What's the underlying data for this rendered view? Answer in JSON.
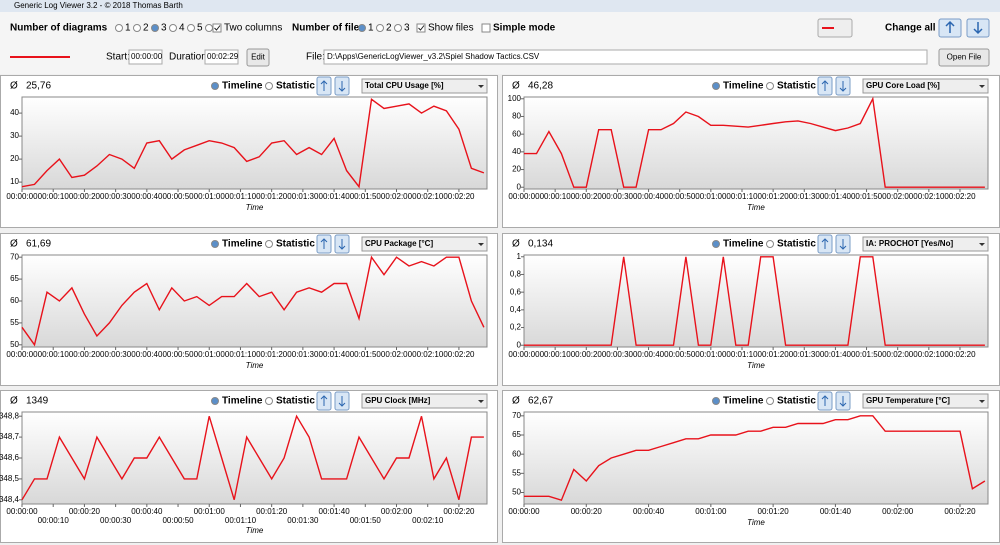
{
  "ui": {
    "window_title": "Generic Log Viewer 3.2 - © 2018 Thomas Barth",
    "diagrams_label": "Number of diagrams",
    "diagram_options": [
      "1",
      "2",
      "3",
      "4",
      "5",
      "6"
    ],
    "two_columns": "Two columns",
    "files_label": "Number of files",
    "file_options": [
      "1",
      "2",
      "3"
    ],
    "show_files": "Show files",
    "simple_mode": "Simple mode",
    "change_all": "Change all",
    "start_label": "Start:",
    "start": "00:00:00",
    "duration_label": "Duration:",
    "duration": "00:02:29",
    "edit": "Edit",
    "file_label": "File:",
    "file_path": "D:\\Apps\\GenericLogViewer_v3.2\\Spiel Shadow Tactics.CSV",
    "open_file": "Open File",
    "avg_symbol": "Ø",
    "view_modes": [
      "Timeline",
      "Statistic"
    ]
  },
  "chart_data": [
    {
      "type": "line",
      "metric": "Total CPU Usage [%]",
      "average_label": "25,76",
      "xlabel": "Time",
      "color": "#e8121b",
      "x": [
        0,
        4,
        8,
        12,
        16,
        20,
        24,
        28,
        32,
        36,
        40,
        44,
        48,
        52,
        56,
        60,
        64,
        68,
        72,
        76,
        80,
        84,
        88,
        92,
        96,
        100,
        104,
        108,
        112,
        116,
        120,
        124,
        128,
        132,
        136,
        140,
        144,
        148
      ],
      "values": [
        8,
        9,
        15,
        20,
        12,
        13,
        17,
        22,
        20,
        16,
        27,
        28,
        20,
        24,
        26,
        28,
        27,
        25,
        19,
        21,
        27,
        28,
        22,
        25,
        22,
        29,
        15,
        8,
        46,
        42,
        43,
        44,
        40,
        43,
        41,
        33,
        16,
        14
      ],
      "xlim": [
        0,
        149
      ],
      "ylim": [
        7,
        47
      ],
      "yticks": [
        10,
        20,
        30,
        40
      ],
      "xticks": [
        {
          "value": 0,
          "label": "00:00:00"
        },
        {
          "value": 10,
          "label": "00:00:10"
        },
        {
          "value": 20,
          "label": "00:00:20"
        },
        {
          "value": 30,
          "label": "00:00:30"
        },
        {
          "value": 40,
          "label": "00:00:40"
        },
        {
          "value": 50,
          "label": "00:00:50"
        },
        {
          "value": 60,
          "label": "00:01:00"
        },
        {
          "value": 70,
          "label": "00:01:10"
        },
        {
          "value": 80,
          "label": "00:01:20"
        },
        {
          "value": 90,
          "label": "00:01:30"
        },
        {
          "value": 100,
          "label": "00:01:40"
        },
        {
          "value": 110,
          "label": "00:01:50"
        },
        {
          "value": 120,
          "label": "00:02:00"
        },
        {
          "value": 130,
          "label": "00:02:10"
        },
        {
          "value": 140,
          "label": "00:02:20"
        }
      ]
    },
    {
      "type": "line",
      "metric": "GPU Core Load [%]",
      "average_label": "46,28",
      "xlabel": "Time",
      "color": "#e8121b",
      "x": [
        0,
        4,
        8,
        12,
        16,
        20,
        24,
        28,
        32,
        36,
        40,
        44,
        48,
        52,
        56,
        60,
        64,
        68,
        72,
        76,
        80,
        84,
        88,
        92,
        96,
        100,
        104,
        108,
        112,
        116,
        120,
        124,
        128,
        132,
        136,
        140,
        144,
        148
      ],
      "values": [
        38,
        38,
        63,
        38,
        0,
        0,
        65,
        65,
        0,
        0,
        65,
        65,
        72,
        85,
        80,
        70,
        70,
        69,
        68,
        70,
        72,
        74,
        75,
        72,
        68,
        64,
        67,
        72,
        100,
        0,
        0,
        0,
        0,
        0,
        0,
        0,
        0,
        0
      ],
      "xlim": [
        0,
        149
      ],
      "ylim": [
        -2,
        102
      ],
      "yticks": [
        0,
        20,
        40,
        60,
        80,
        100
      ],
      "xticks": [
        {
          "value": 0,
          "label": "00:00:00"
        },
        {
          "value": 10,
          "label": "00:00:10"
        },
        {
          "value": 20,
          "label": "00:00:20"
        },
        {
          "value": 30,
          "label": "00:00:30"
        },
        {
          "value": 40,
          "label": "00:00:40"
        },
        {
          "value": 50,
          "label": "00:00:50"
        },
        {
          "value": 60,
          "label": "00:01:00"
        },
        {
          "value": 70,
          "label": "00:01:10"
        },
        {
          "value": 80,
          "label": "00:01:20"
        },
        {
          "value": 90,
          "label": "00:01:30"
        },
        {
          "value": 100,
          "label": "00:01:40"
        },
        {
          "value": 110,
          "label": "00:01:50"
        },
        {
          "value": 120,
          "label": "00:02:00"
        },
        {
          "value": 130,
          "label": "00:02:10"
        },
        {
          "value": 140,
          "label": "00:02:20"
        }
      ]
    },
    {
      "type": "line",
      "metric": "CPU Package [°C]",
      "average_label": "61,69",
      "xlabel": "Time",
      "color": "#e8121b",
      "x": [
        0,
        4,
        8,
        12,
        16,
        20,
        24,
        28,
        32,
        36,
        40,
        44,
        48,
        52,
        56,
        60,
        64,
        68,
        72,
        76,
        80,
        84,
        88,
        92,
        96,
        100,
        104,
        108,
        112,
        116,
        120,
        124,
        128,
        132,
        136,
        140,
        144,
        148
      ],
      "values": [
        54,
        50,
        62,
        60,
        63,
        57,
        52,
        55,
        59,
        62,
        64,
        58,
        63,
        60,
        61,
        59,
        61,
        61,
        64,
        61,
        62,
        58,
        62,
        63,
        62,
        64,
        64,
        56,
        70,
        66,
        70,
        68,
        69,
        68,
        70,
        70,
        60,
        54
      ],
      "xlim": [
        0,
        149
      ],
      "ylim": [
        49.5,
        70.5
      ],
      "yticks": [
        50,
        55,
        60,
        65,
        70
      ],
      "xticks": [
        {
          "value": 0,
          "label": "00:00:00"
        },
        {
          "value": 10,
          "label": "00:00:10"
        },
        {
          "value": 20,
          "label": "00:00:20"
        },
        {
          "value": 30,
          "label": "00:00:30"
        },
        {
          "value": 40,
          "label": "00:00:40"
        },
        {
          "value": 50,
          "label": "00:00:50"
        },
        {
          "value": 60,
          "label": "00:01:00"
        },
        {
          "value": 70,
          "label": "00:01:10"
        },
        {
          "value": 80,
          "label": "00:01:20"
        },
        {
          "value": 90,
          "label": "00:01:30"
        },
        {
          "value": 100,
          "label": "00:01:40"
        },
        {
          "value": 110,
          "label": "00:01:50"
        },
        {
          "value": 120,
          "label": "00:02:00"
        },
        {
          "value": 130,
          "label": "00:02:10"
        },
        {
          "value": 140,
          "label": "00:02:20"
        }
      ]
    },
    {
      "type": "line",
      "metric": "IA: PROCHOT [Yes/No]",
      "average_label": "0,134",
      "xlabel": "Time",
      "color": "#e8121b",
      "x": [
        0,
        4,
        8,
        12,
        16,
        20,
        24,
        28,
        32,
        36,
        40,
        44,
        48,
        52,
        56,
        60,
        64,
        68,
        72,
        76,
        80,
        84,
        88,
        92,
        96,
        100,
        104,
        108,
        112,
        116,
        120,
        124,
        128,
        132,
        136,
        140,
        144,
        148
      ],
      "values": [
        0,
        0,
        0,
        0,
        0,
        0,
        0,
        0,
        1,
        0,
        0,
        0,
        0,
        1,
        0,
        0,
        1,
        0,
        0,
        1,
        1,
        0,
        0,
        0,
        0,
        0,
        0,
        1,
        1,
        0,
        0,
        0,
        0,
        0,
        0,
        0,
        0,
        0
      ],
      "xlim": [
        0,
        149
      ],
      "ylim": [
        -0.02,
        1.02
      ],
      "yticks": [
        0,
        {
          "value": 0.2,
          "label": "0,2"
        },
        {
          "value": 0.4,
          "label": "0,4"
        },
        {
          "value": 0.6,
          "label": "0,6"
        },
        {
          "value": 0.8,
          "label": "0,8"
        },
        1
      ],
      "xticks": [
        {
          "value": 0,
          "label": "00:00:00"
        },
        {
          "value": 10,
          "label": "00:00:10"
        },
        {
          "value": 20,
          "label": "00:00:20"
        },
        {
          "value": 30,
          "label": "00:00:30"
        },
        {
          "value": 40,
          "label": "00:00:40"
        },
        {
          "value": 50,
          "label": "00:00:50"
        },
        {
          "value": 60,
          "label": "00:01:00"
        },
        {
          "value": 70,
          "label": "00:01:10"
        },
        {
          "value": 80,
          "label": "00:01:20"
        },
        {
          "value": 90,
          "label": "00:01:30"
        },
        {
          "value": 100,
          "label": "00:01:40"
        },
        {
          "value": 110,
          "label": "00:01:50"
        },
        {
          "value": 120,
          "label": "00:02:00"
        },
        {
          "value": 130,
          "label": "00:02:10"
        },
        {
          "value": 140,
          "label": "00:02:20"
        }
      ]
    },
    {
      "type": "line",
      "metric": "GPU Clock [MHz]",
      "average_label": "1349",
      "xlabel": "Time",
      "color": "#e8121b",
      "x": [
        0,
        4,
        8,
        12,
        16,
        20,
        24,
        28,
        32,
        36,
        40,
        44,
        48,
        52,
        56,
        60,
        64,
        68,
        72,
        76,
        80,
        84,
        88,
        92,
        96,
        100,
        104,
        108,
        112,
        116,
        120,
        124,
        128,
        132,
        136,
        140,
        144,
        148
      ],
      "values": [
        1348.4,
        1348.5,
        1348.5,
        1348.7,
        1348.6,
        1348.5,
        1348.7,
        1348.6,
        1348.5,
        1348.6,
        1348.6,
        1348.7,
        1348.6,
        1348.5,
        1348.5,
        1348.8,
        1348.6,
        1348.4,
        1348.7,
        1348.6,
        1348.5,
        1348.6,
        1348.8,
        1348.7,
        1348.5,
        1348.5,
        1348.5,
        1348.7,
        1348.6,
        1348.5,
        1348.6,
        1348.6,
        1348.8,
        1348.5,
        1348.6,
        1348.4,
        1348.7,
        1348.7
      ],
      "xlim": [
        0,
        149
      ],
      "ylim": [
        1348.38,
        1348.82
      ],
      "yticks": [
        {
          "value": 1348.4,
          "label": "1348,4"
        },
        {
          "value": 1348.5,
          "label": "1348,5"
        },
        {
          "value": 1348.6,
          "label": "1348,6"
        },
        {
          "value": 1348.7,
          "label": "1348,7"
        },
        {
          "value": 1348.8,
          "label": "1348,8"
        }
      ],
      "xticks": [
        {
          "value": 0,
          "label": "00:00:00"
        },
        {
          "value": 10,
          "label": "00:00:10"
        },
        {
          "value": 20,
          "label": "00:00:20"
        },
        {
          "value": 30,
          "label": "00:00:30"
        },
        {
          "value": 40,
          "label": "00:00:40"
        },
        {
          "value": 50,
          "label": "00:00:50"
        },
        {
          "value": 60,
          "label": "00:01:00"
        },
        {
          "value": 70,
          "label": "00:01:10"
        },
        {
          "value": 80,
          "label": "00:01:20"
        },
        {
          "value": 90,
          "label": "00:01:30"
        },
        {
          "value": 100,
          "label": "00:01:40"
        },
        {
          "value": 110,
          "label": "00:01:50"
        },
        {
          "value": 120,
          "label": "00:02:00"
        },
        {
          "value": 130,
          "label": "00:02:10"
        },
        {
          "value": 140,
          "label": "00:02:20"
        }
      ]
    },
    {
      "type": "line",
      "metric": "GPU Temperature [°C]",
      "average_label": "62,67",
      "xlabel": "Time",
      "color": "#e8121b",
      "x": [
        0,
        4,
        8,
        12,
        16,
        20,
        24,
        28,
        32,
        36,
        40,
        44,
        48,
        52,
        56,
        60,
        64,
        68,
        72,
        76,
        80,
        84,
        88,
        92,
        96,
        100,
        104,
        108,
        112,
        116,
        120,
        124,
        128,
        132,
        136,
        140,
        144,
        148
      ],
      "values": [
        49,
        49,
        49,
        48,
        56,
        53,
        57,
        59,
        60,
        61,
        61,
        62,
        63,
        64,
        64,
        65,
        65,
        65,
        66,
        66,
        67,
        67,
        68,
        68,
        68,
        69,
        69,
        70,
        70,
        66,
        66,
        66,
        66,
        66,
        66,
        66,
        51,
        53
      ],
      "xlim": [
        0,
        149
      ],
      "ylim": [
        47,
        71
      ],
      "yticks": [
        50,
        55,
        60,
        65,
        70
      ],
      "xticks": [
        {
          "value": 0,
          "label": "00:00:00"
        },
        {
          "value": 20,
          "label": "00:00:20"
        },
        {
          "value": 40,
          "label": "00:00:40"
        },
        {
          "value": 60,
          "label": "00:01:00"
        },
        {
          "value": 80,
          "label": "00:01:20"
        },
        {
          "value": 100,
          "label": "00:01:40"
        },
        {
          "value": 120,
          "label": "00:02:00"
        },
        {
          "value": 140,
          "label": "00:02:20"
        }
      ]
    }
  ]
}
